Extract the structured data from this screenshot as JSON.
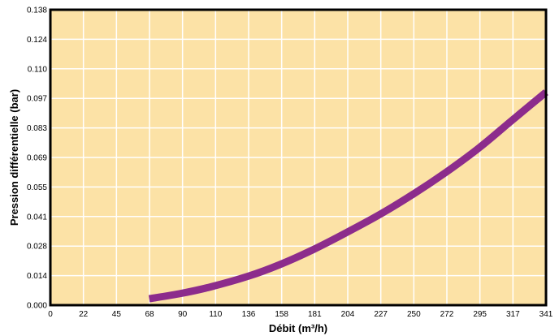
{
  "chart_data": {
    "type": "line",
    "title": "",
    "xlabel": "Débit (m³/h)",
    "ylabel": "Pression différentielle (bar)",
    "x_ticks": [
      "0",
      "22",
      "45",
      "68",
      "90",
      "110",
      "136",
      "158",
      "181",
      "204",
      "227",
      "250",
      "272",
      "295",
      "317",
      "341"
    ],
    "y_ticks": [
      "0.000",
      "0.014",
      "0.028",
      "0.041",
      "0.055",
      "0.069",
      "0.083",
      "0.097",
      "0.110",
      "0.124",
      "0.138"
    ],
    "xlim": [
      0,
      341
    ],
    "ylim": [
      0,
      0.138
    ],
    "grid": true,
    "series": [
      {
        "x": [
          68,
          90,
          110,
          136,
          158,
          181,
          204,
          227,
          250,
          272,
          295,
          317,
          341
        ],
        "y": [
          0.003,
          0.0055,
          0.0085,
          0.0135,
          0.019,
          0.026,
          0.034,
          0.0425,
          0.052,
          0.062,
          0.0735,
          0.086,
          0.0995
        ]
      }
    ],
    "colors": {
      "plot_background": "#fce2a6",
      "grid": "#ffffff",
      "frame": "#000000",
      "line": "#8c2c8c"
    }
  }
}
